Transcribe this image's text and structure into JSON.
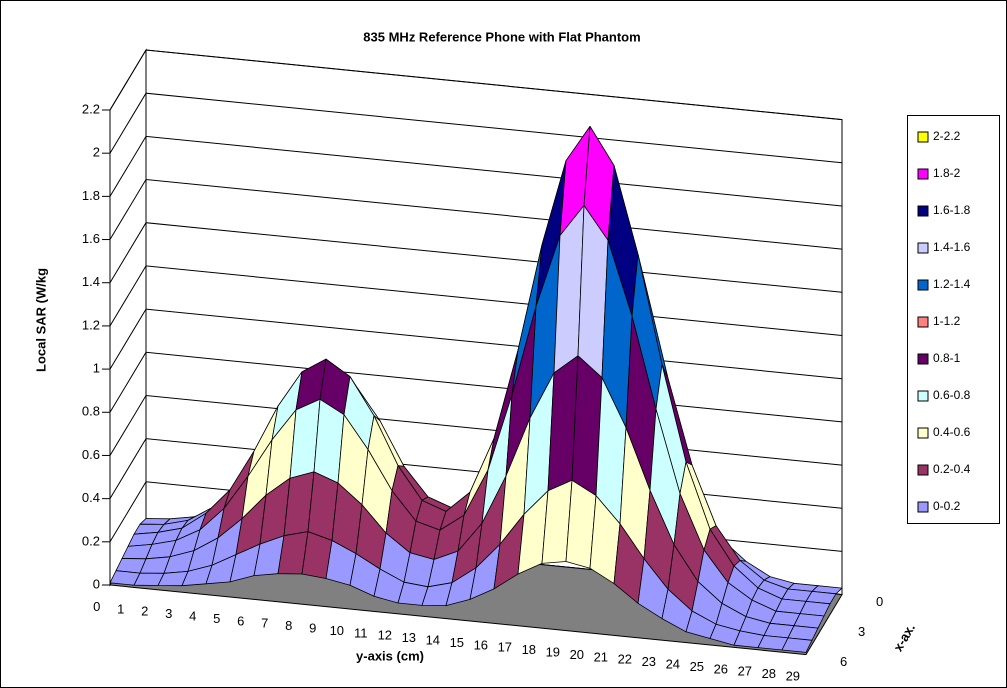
{
  "chart_data": {
    "type": "surface",
    "title": "835 MHz Reference Phone with Flat Phantom",
    "value_axis_label": "Local SAR (W/kg",
    "x_axis_label": "y-axis (cm)",
    "depth_axis_label": "x-ax.",
    "zlim": [
      0,
      2.2
    ],
    "zticks": [
      0,
      0.2,
      0.4,
      0.6,
      0.8,
      1,
      1.2,
      1.4,
      1.6,
      1.8,
      2,
      2.2
    ],
    "x_categories": [
      0,
      1,
      2,
      3,
      4,
      5,
      6,
      7,
      8,
      9,
      10,
      11,
      12,
      13,
      14,
      15,
      16,
      17,
      18,
      19,
      20,
      21,
      22,
      23,
      24,
      25,
      26,
      27,
      28,
      29
    ],
    "depth_categories": [
      0,
      null,
      null,
      3,
      null,
      null,
      6
    ],
    "floor_color": "#808080",
    "bands": [
      {
        "name": "0-0.2",
        "color": "#9999ff",
        "range": [
          0,
          0.2
        ]
      },
      {
        "name": "0.2-0.4",
        "color": "#993366",
        "range": [
          0.2,
          0.4
        ]
      },
      {
        "name": "0.4-0.6",
        "color": "#ffffcc",
        "range": [
          0.4,
          0.6
        ]
      },
      {
        "name": "0.6-0.8",
        "color": "#ccffff",
        "range": [
          0.6,
          0.8
        ]
      },
      {
        "name": "0.8-1",
        "color": "#660066",
        "range": [
          0.8,
          1
        ]
      },
      {
        "name": "1-1.2",
        "color": "#ff8080",
        "range": [
          1,
          1.2
        ]
      },
      {
        "name": "1.2-1.4",
        "color": "#0066cc",
        "range": [
          1.2,
          1.4
        ]
      },
      {
        "name": "1.4-1.6",
        "color": "#ccccff",
        "range": [
          1.4,
          1.6
        ]
      },
      {
        "name": "1.6-1.8",
        "color": "#000080",
        "range": [
          1.6,
          1.8
        ]
      },
      {
        "name": "1.8-2",
        "color": "#ff00ff",
        "range": [
          1.8,
          2
        ]
      },
      {
        "name": "2-2.2",
        "color": "#ffff00",
        "range": [
          2,
          2.2
        ]
      }
    ],
    "z": [
      [
        0.03,
        0.04,
        0.06,
        0.11,
        0.18,
        0.29,
        0.43,
        0.53,
        0.57,
        0.53,
        0.43,
        0.29,
        0.2,
        0.18,
        0.24,
        0.4,
        0.65,
        0.95,
        1.19,
        1.29,
        1.19,
        0.95,
        0.65,
        0.38,
        0.2,
        0.11,
        0.05,
        0.03,
        0.03,
        0.03
      ],
      [
        0.05,
        0.06,
        0.09,
        0.16,
        0.27,
        0.44,
        0.64,
        0.79,
        0.86,
        0.79,
        0.64,
        0.44,
        0.31,
        0.27,
        0.36,
        0.59,
        0.97,
        1.42,
        1.78,
        1.94,
        1.78,
        1.42,
        0.97,
        0.58,
        0.31,
        0.16,
        0.08,
        0.05,
        0.05,
        0.05
      ],
      [
        0.05,
        0.07,
        0.1,
        0.18,
        0.3,
        0.49,
        0.71,
        0.88,
        0.95,
        0.88,
        0.71,
        0.49,
        0.34,
        0.3,
        0.4,
        0.66,
        1.08,
        1.58,
        1.98,
        2.15,
        1.98,
        1.58,
        1.08,
        0.64,
        0.34,
        0.18,
        0.09,
        0.05,
        0.05,
        0.05
      ],
      [
        0.04,
        0.06,
        0.09,
        0.15,
        0.26,
        0.42,
        0.6,
        0.75,
        0.81,
        0.75,
        0.6,
        0.42,
        0.29,
        0.26,
        0.34,
        0.56,
        0.92,
        1.34,
        1.68,
        1.83,
        1.68,
        1.34,
        0.92,
        0.54,
        0.29,
        0.15,
        0.08,
        0.04,
        0.04,
        0.04
      ],
      [
        0.03,
        0.04,
        0.06,
        0.1,
        0.17,
        0.27,
        0.39,
        0.48,
        0.52,
        0.48,
        0.39,
        0.27,
        0.19,
        0.17,
        0.22,
        0.36,
        0.59,
        0.87,
        1.09,
        1.18,
        1.09,
        0.87,
        0.59,
        0.35,
        0.19,
        0.1,
        0.05,
        0.03,
        0.03,
        0.03
      ],
      [
        0.02,
        0.02,
        0.03,
        0.05,
        0.09,
        0.15,
        0.21,
        0.26,
        0.29,
        0.26,
        0.21,
        0.15,
        0.1,
        0.09,
        0.12,
        0.2,
        0.32,
        0.47,
        0.59,
        0.65,
        0.59,
        0.47,
        0.32,
        0.19,
        0.1,
        0.05,
        0.03,
        0.02,
        0.02,
        0.02
      ],
      [
        0.01,
        0.01,
        0.02,
        0.03,
        0.05,
        0.07,
        0.11,
        0.13,
        0.14,
        0.13,
        0.11,
        0.07,
        0.05,
        0.05,
        0.06,
        0.1,
        0.16,
        0.24,
        0.3,
        0.32,
        0.3,
        0.24,
        0.16,
        0.1,
        0.05,
        0.03,
        0.01,
        0.01,
        0.01,
        0.01
      ]
    ]
  }
}
